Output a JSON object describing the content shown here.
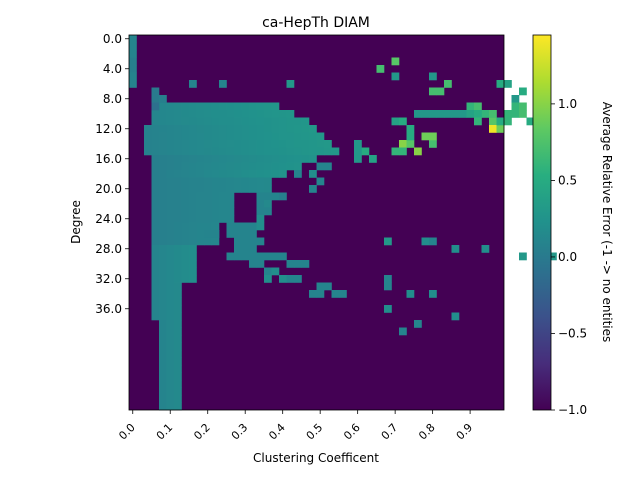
{
  "chart_data": {
    "type": "heatmap",
    "title": "ca-HepTh DIAM",
    "xlabel": "Clustering Coefficent",
    "ylabel": "Degree",
    "colorbar_label": "Average Relative Error (-1 -> no entities",
    "x_ticks": [
      "0.0",
      "0.1",
      "0.2",
      "0.3",
      "0.4",
      "0.5",
      "0.6",
      "0.7",
      "0.8",
      "0.9"
    ],
    "y_ticks": [
      "0.0",
      "4.0",
      "8.0",
      "12.0",
      "16.0",
      "20.0",
      "24.0",
      "28.0",
      "32.0",
      "36.0"
    ],
    "colorbar_ticks": [
      "1.0",
      "0.5",
      "0.0",
      "−0.5",
      "−1.0"
    ],
    "x_range": [
      0.0,
      1.0
    ],
    "y_range": [
      0,
      39
    ],
    "color_range": [
      -1.0,
      1.45
    ],
    "colormap": "viridis",
    "grid": false,
    "background_value": -1,
    "cells": [
      [
        0,
        0,
        0.1
      ],
      [
        0,
        1,
        0.1
      ],
      [
        0,
        2,
        0.1
      ],
      [
        0,
        3,
        0.05
      ],
      [
        0,
        4,
        0.05
      ],
      [
        0,
        5,
        0.1
      ],
      [
        0,
        6,
        0.1
      ],
      [
        3,
        7,
        0.0
      ],
      [
        3,
        8,
        0.0
      ],
      [
        3,
        9,
        -0.1
      ],
      [
        4,
        8,
        0.05
      ],
      [
        8,
        6,
        0.1
      ],
      [
        12,
        6,
        0.1
      ],
      [
        21,
        6,
        0.3
      ],
      [
        35,
        5,
        0.3
      ],
      [
        40,
        5,
        0.3
      ],
      [
        33,
        4,
        0.7
      ],
      [
        35,
        3,
        0.8
      ],
      [
        42,
        6,
        0.7
      ],
      [
        40,
        7,
        0.7
      ],
      [
        41,
        7,
        0.7
      ],
      [
        45,
        9,
        0.6
      ],
      [
        46,
        9,
        0.7
      ],
      [
        49,
        6,
        0.5
      ],
      [
        50,
        6,
        0.4
      ],
      [
        52,
        7,
        0.5
      ],
      [
        54,
        6,
        0.3
      ],
      [
        51,
        8,
        0.3
      ],
      [
        51,
        9,
        0.6
      ],
      [
        51,
        10,
        0.6
      ],
      [
        52,
        10,
        0.7
      ],
      [
        52,
        9,
        0.7
      ],
      [
        47,
        10,
        0.6
      ],
      [
        38,
        10,
        0.3
      ],
      [
        39,
        10,
        0.3
      ],
      [
        40,
        10,
        0.3
      ],
      [
        41,
        10,
        0.3
      ],
      [
        42,
        10,
        0.3
      ],
      [
        43,
        10,
        0.3
      ],
      [
        44,
        10,
        0.3
      ],
      [
        45,
        10,
        0.4
      ],
      [
        46,
        10,
        0.5
      ],
      [
        46,
        11,
        0.6
      ],
      [
        48,
        11,
        0.8
      ],
      [
        48,
        12,
        1.4
      ],
      [
        49,
        12,
        0.9
      ],
      [
        48,
        10,
        0.7
      ],
      [
        49,
        11,
        0.5
      ],
      [
        50,
        11,
        0.6
      ],
      [
        50,
        10,
        0.6
      ],
      [
        53,
        11,
        0.5
      ],
      [
        54,
        11,
        0.5
      ],
      [
        36,
        14,
        1.0
      ],
      [
        37,
        14,
        0.8
      ],
      [
        38,
        15,
        1.0
      ],
      [
        40,
        14,
        0.7
      ],
      [
        39,
        13,
        0.9
      ],
      [
        40,
        13,
        0.9
      ],
      [
        35,
        15,
        0.6
      ],
      [
        36,
        15,
        0.6
      ],
      [
        35,
        11,
        0.4
      ],
      [
        36,
        11,
        0.5
      ],
      [
        37,
        12,
        0.5
      ],
      [
        37,
        13,
        0.5
      ],
      [
        31,
        15,
        0.5
      ],
      [
        32,
        16,
        0.4
      ],
      [
        30,
        14,
        0.3
      ],
      [
        30,
        15,
        0.3
      ],
      [
        30,
        16,
        0.3
      ],
      [
        25,
        17,
        0.1
      ],
      [
        26,
        17,
        0.1
      ],
      [
        22,
        18,
        0.1
      ],
      [
        24,
        18,
        0.2
      ],
      [
        25,
        19,
        0.1
      ],
      [
        24,
        20,
        0.1
      ],
      [
        17,
        21,
        0.1
      ],
      [
        18,
        21,
        0.1
      ],
      [
        19,
        21,
        0.1
      ],
      [
        20,
        21,
        0.05
      ],
      [
        17,
        22,
        0.1
      ],
      [
        18,
        22,
        0.15
      ],
      [
        17,
        23,
        0.1
      ],
      [
        18,
        23,
        0.1
      ],
      [
        17,
        24,
        0.2
      ],
      [
        13,
        25,
        0.1
      ],
      [
        14,
        25,
        0.1
      ],
      [
        15,
        25,
        0.1
      ],
      [
        16,
        25,
        0.1
      ],
      [
        17,
        25,
        0.2
      ],
      [
        10,
        26,
        0.1
      ],
      [
        11,
        26,
        0.1
      ],
      [
        13,
        26,
        0.1
      ],
      [
        14,
        26,
        0.1
      ],
      [
        15,
        26,
        0.1
      ],
      [
        16,
        26,
        0.1
      ],
      [
        14,
        27,
        0.1
      ],
      [
        15,
        27,
        0.1
      ],
      [
        16,
        27,
        0.1
      ],
      [
        17,
        27,
        0.1
      ],
      [
        14,
        28,
        0.1
      ],
      [
        15,
        28,
        0.1
      ],
      [
        16,
        28,
        0.1
      ],
      [
        13,
        29,
        0.1
      ],
      [
        14,
        29,
        0.1
      ],
      [
        15,
        29,
        0.1
      ],
      [
        16,
        29,
        0.1
      ],
      [
        17,
        29,
        0.1
      ],
      [
        18,
        29,
        0.1
      ],
      [
        19,
        29,
        0.1
      ],
      [
        20,
        29,
        0.1
      ],
      [
        16,
        30,
        0.1
      ],
      [
        17,
        30,
        0.1
      ],
      [
        21,
        30,
        0.1
      ],
      [
        22,
        30,
        0.1
      ],
      [
        23,
        30,
        0.1
      ],
      [
        18,
        31,
        0.1
      ],
      [
        19,
        31,
        0.2
      ],
      [
        18,
        32,
        0.2
      ],
      [
        20,
        32,
        0.2
      ],
      [
        21,
        32,
        0.1
      ],
      [
        22,
        32,
        0.1
      ],
      [
        25,
        33,
        0.1
      ],
      [
        26,
        33,
        0.1
      ],
      [
        24,
        34,
        0.1
      ],
      [
        25,
        34,
        0.1
      ],
      [
        27,
        34,
        0.1
      ],
      [
        28,
        34,
        0.1
      ],
      [
        34,
        27,
        0.3
      ],
      [
        39,
        27,
        0.2
      ],
      [
        40,
        27,
        0.1
      ],
      [
        43,
        28,
        0.2
      ],
      [
        47,
        28,
        0.2
      ],
      [
        52,
        29,
        0.3
      ],
      [
        56,
        29,
        0.3
      ],
      [
        34,
        32,
        0.1
      ],
      [
        34,
        33,
        0.1
      ],
      [
        37,
        34,
        0.2
      ],
      [
        40,
        34,
        0.2
      ],
      [
        43,
        37,
        0.2
      ],
      [
        34,
        36,
        0.2
      ],
      [
        36,
        39,
        0.1
      ],
      [
        38,
        38,
        0.1
      ]
    ]
  }
}
